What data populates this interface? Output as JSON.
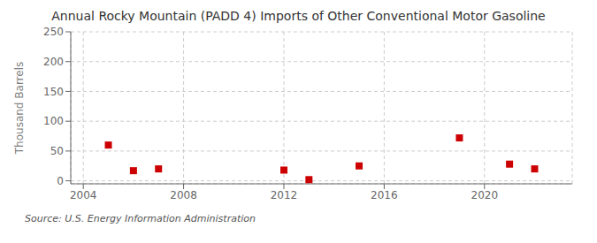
{
  "chart_data": {
    "type": "scatter",
    "title": "Annual Rocky Mountain (PADD 4) Imports of Other Conventional Motor Gasoline",
    "y_label": "Thousand Barrels",
    "annotations": [
      "Source: U.S. Energy Information Administration"
    ],
    "x": [
      2005,
      2006,
      2007,
      2012,
      2013,
      2015,
      2019,
      2021,
      2022
    ],
    "values": [
      60,
      17,
      20,
      18,
      2,
      25,
      72,
      28,
      20
    ],
    "color": "#cc0000",
    "marker": "square",
    "xlim": [
      2003.5,
      2023.5
    ],
    "xticks": [
      2004,
      2008,
      2012,
      2016,
      2020
    ],
    "ylim": [
      -5,
      250
    ],
    "yticks": [
      0,
      50,
      100,
      150,
      200,
      250
    ],
    "grid": true
  }
}
